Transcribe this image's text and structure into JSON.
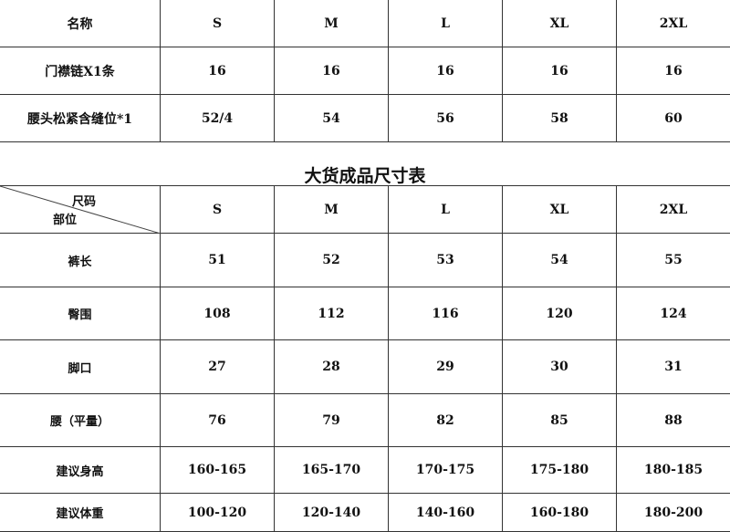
{
  "accessory_table": {
    "header": [
      "名称",
      "S",
      "M",
      "L",
      "XL",
      "2XL"
    ],
    "rows": [
      [
        "门襟链X1条",
        "16",
        "16",
        "16",
        "16",
        "16"
      ],
      [
        "腰头松紧含缝位*1",
        "52/4",
        "54",
        "56",
        "58",
        "60"
      ]
    ]
  },
  "size_chart": {
    "title": "大货成品尺寸表",
    "corner_top": "尺码",
    "corner_bottom": "部位",
    "sizes": [
      "S",
      "M",
      "L",
      "XL",
      "2XL"
    ],
    "rows": [
      [
        "裤长",
        "51",
        "52",
        "53",
        "54",
        "55"
      ],
      [
        "臀围",
        "108",
        "112",
        "116",
        "120",
        "124"
      ],
      [
        "脚口",
        "27",
        "28",
        "29",
        "30",
        "31"
      ],
      [
        "腰（平量）",
        "76",
        "79",
        "82",
        "85",
        "88"
      ],
      [
        "建议身高",
        "160-165",
        "165-170",
        "170-175",
        "175-180",
        "180-185"
      ],
      [
        "建议体重",
        "100-120",
        "120-140",
        "140-160",
        "160-180",
        "180-200"
      ]
    ]
  }
}
